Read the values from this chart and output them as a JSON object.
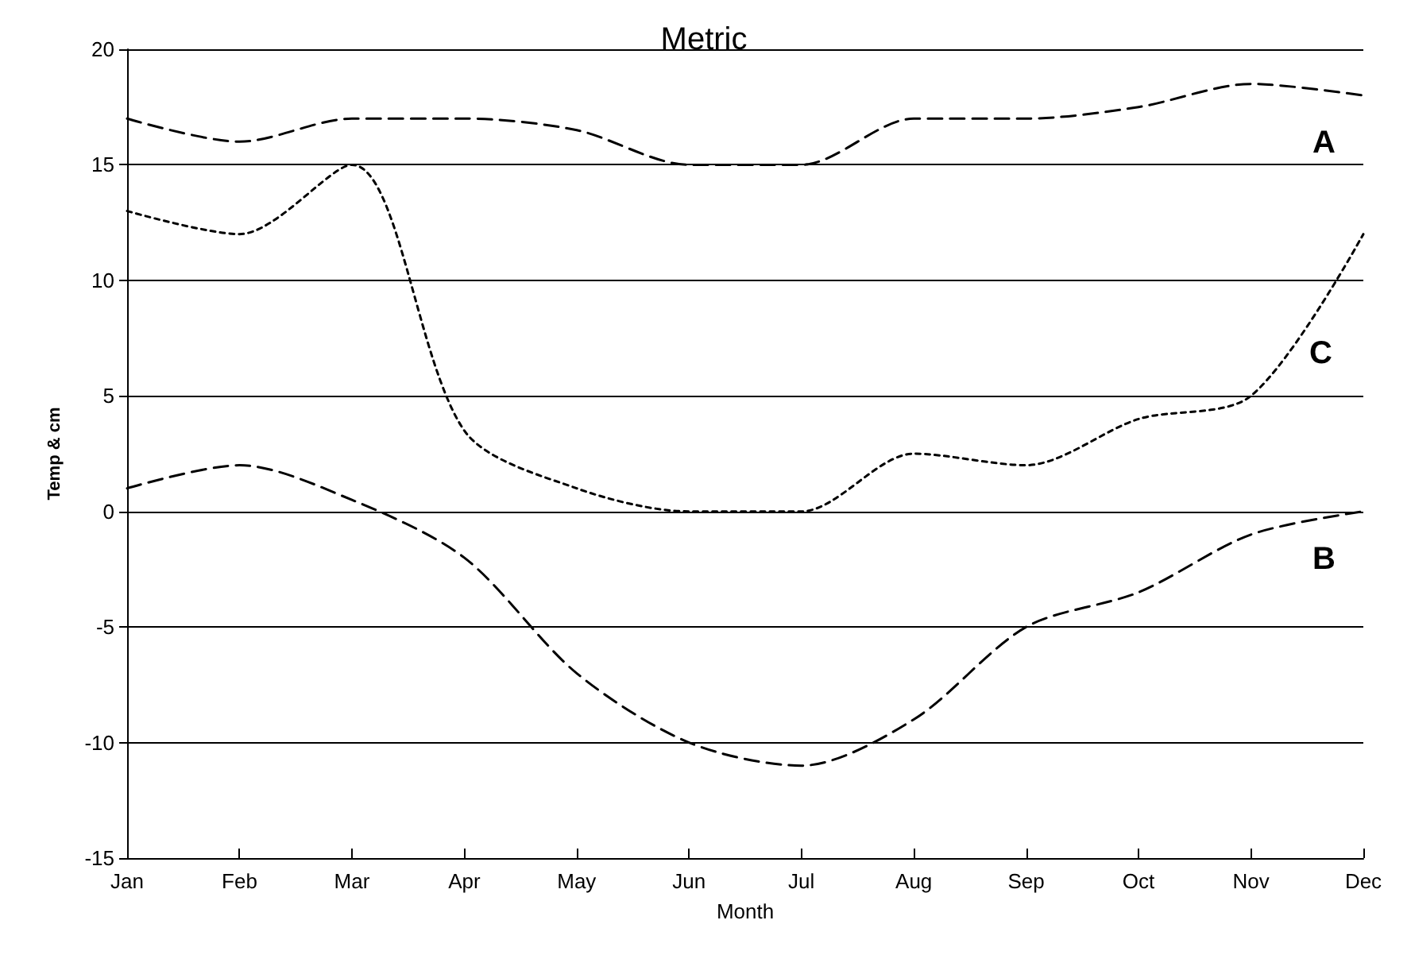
{
  "chart_data": {
    "type": "line",
    "title": "Metric",
    "xlabel": "Month",
    "ylabel": "Temp & cm",
    "categories": [
      "Jan",
      "Feb",
      "Mar",
      "Apr",
      "May",
      "Jun",
      "Jul",
      "Aug",
      "Sep",
      "Oct",
      "Nov",
      "Dec"
    ],
    "series": [
      {
        "name": "A",
        "color": "#000000",
        "line_style": "dashed",
        "values": [
          17,
          16,
          17,
          17,
          16.5,
          15,
          15,
          17,
          17,
          17.5,
          18.5,
          18
        ]
      },
      {
        "name": "B",
        "color": "#000000",
        "line_style": "dashed",
        "values": [
          1,
          2,
          0.5,
          -2,
          -7,
          -10,
          -11,
          -9,
          -5,
          -3.5,
          -1,
          0
        ]
      },
      {
        "name": "C",
        "color": "#000000",
        "line_style": "dotted",
        "values": [
          13,
          12,
          15,
          3.5,
          1,
          0,
          0,
          2.5,
          2,
          4,
          5,
          12
        ]
      }
    ],
    "ylim": [
      -15,
      20
    ],
    "yticks": [
      -15,
      -10,
      -5,
      0,
      5,
      10,
      15,
      20
    ],
    "grid": "y",
    "legend": false,
    "marker": "none"
  }
}
